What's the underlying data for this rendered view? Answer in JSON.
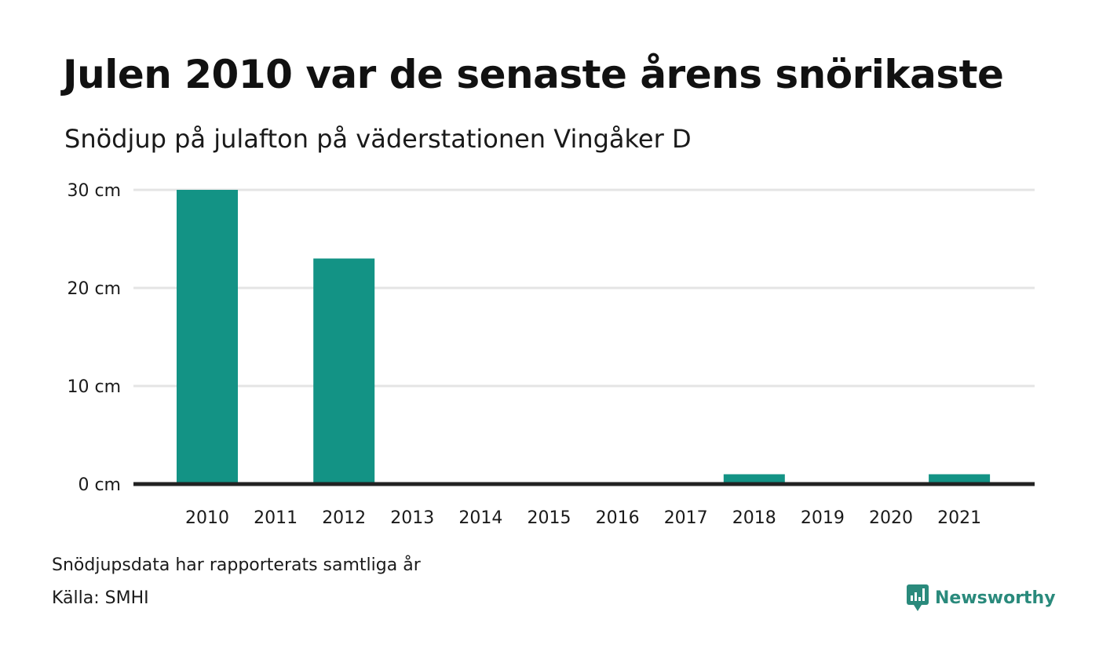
{
  "title": "Julen 2010 var de senaste årens snörikaste",
  "subtitle": "Snödjup på julafton på väderstationen Vingåker D",
  "notes": {
    "reported": "Snödjupsdata har rapporterats samtliga år",
    "source": "Källa: SMHI"
  },
  "brand": {
    "name": "Newsworthy",
    "icon": "newsworthy-logo-icon",
    "color": "#2a8a7c"
  },
  "colors": {
    "bar": "#139385",
    "grid": "#e4e4e4",
    "baseline": "#222222"
  },
  "chart_data": {
    "type": "bar",
    "categories": [
      "2010",
      "2011",
      "2012",
      "2013",
      "2014",
      "2015",
      "2016",
      "2017",
      "2018",
      "2019",
      "2020",
      "2021"
    ],
    "values": [
      30,
      0,
      23,
      0,
      0,
      0,
      0,
      0,
      1,
      0,
      0,
      1
    ],
    "ylim": [
      0,
      30
    ],
    "yticks": [
      0,
      10,
      20,
      30
    ],
    "ytick_labels": [
      "0 cm",
      "10 cm",
      "20 cm",
      "30 cm"
    ],
    "grid": true
  }
}
